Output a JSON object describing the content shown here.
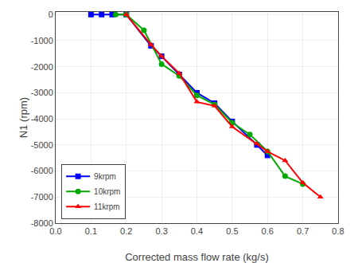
{
  "chart_data": {
    "type": "line",
    "xlabel": "Corrected mass flow rate (kg/s)",
    "ylabel": "N1 (rpm)",
    "series": [
      {
        "name": "9krpm",
        "color": "#0000FF",
        "marker": "square",
        "x": [
          0.1,
          0.13,
          0.16,
          0.2,
          0.27,
          0.3,
          0.35,
          0.4,
          0.45,
          0.5,
          0.57,
          0.6
        ],
        "values": [
          0,
          0,
          0,
          0,
          -1200,
          -1600,
          -2300,
          -3000,
          -3400,
          -4100,
          -5000,
          -5400
        ]
      },
      {
        "name": "10krpm",
        "color": "#00AA00",
        "marker": "circle",
        "x": [
          0.17,
          0.2,
          0.25,
          0.3,
          0.35,
          0.4,
          0.45,
          0.5,
          0.55,
          0.6,
          0.65,
          0.7
        ],
        "values": [
          0,
          0,
          -600,
          -1900,
          -2350,
          -3100,
          -3450,
          -4150,
          -4600,
          -5250,
          -6200,
          -6500
        ]
      },
      {
        "name": "11krpm",
        "color": "#FF0000",
        "marker": "triangle-up",
        "x": [
          0.2,
          0.27,
          0.3,
          0.35,
          0.4,
          0.45,
          0.5,
          0.57,
          0.6,
          0.65,
          0.7,
          0.75
        ],
        "values": [
          0,
          -1150,
          -1600,
          -2250,
          -3350,
          -3500,
          -4300,
          -4950,
          -5250,
          -5600,
          -6450,
          -7000
        ]
      }
    ],
    "xlim": [
      0.0,
      0.8
    ],
    "ylim": [
      -8000,
      100
    ],
    "xticks": [
      {
        "value": 0.0,
        "label": "0.0"
      },
      0.1,
      0.2,
      0.3,
      0.4,
      0.5,
      0.6,
      0.7,
      0.8
    ],
    "yticks": [
      0,
      -1000,
      -2000,
      -3000,
      -4000,
      -5000,
      -6000,
      -7000,
      -8000
    ],
    "grid": true,
    "legend": "lower left"
  }
}
